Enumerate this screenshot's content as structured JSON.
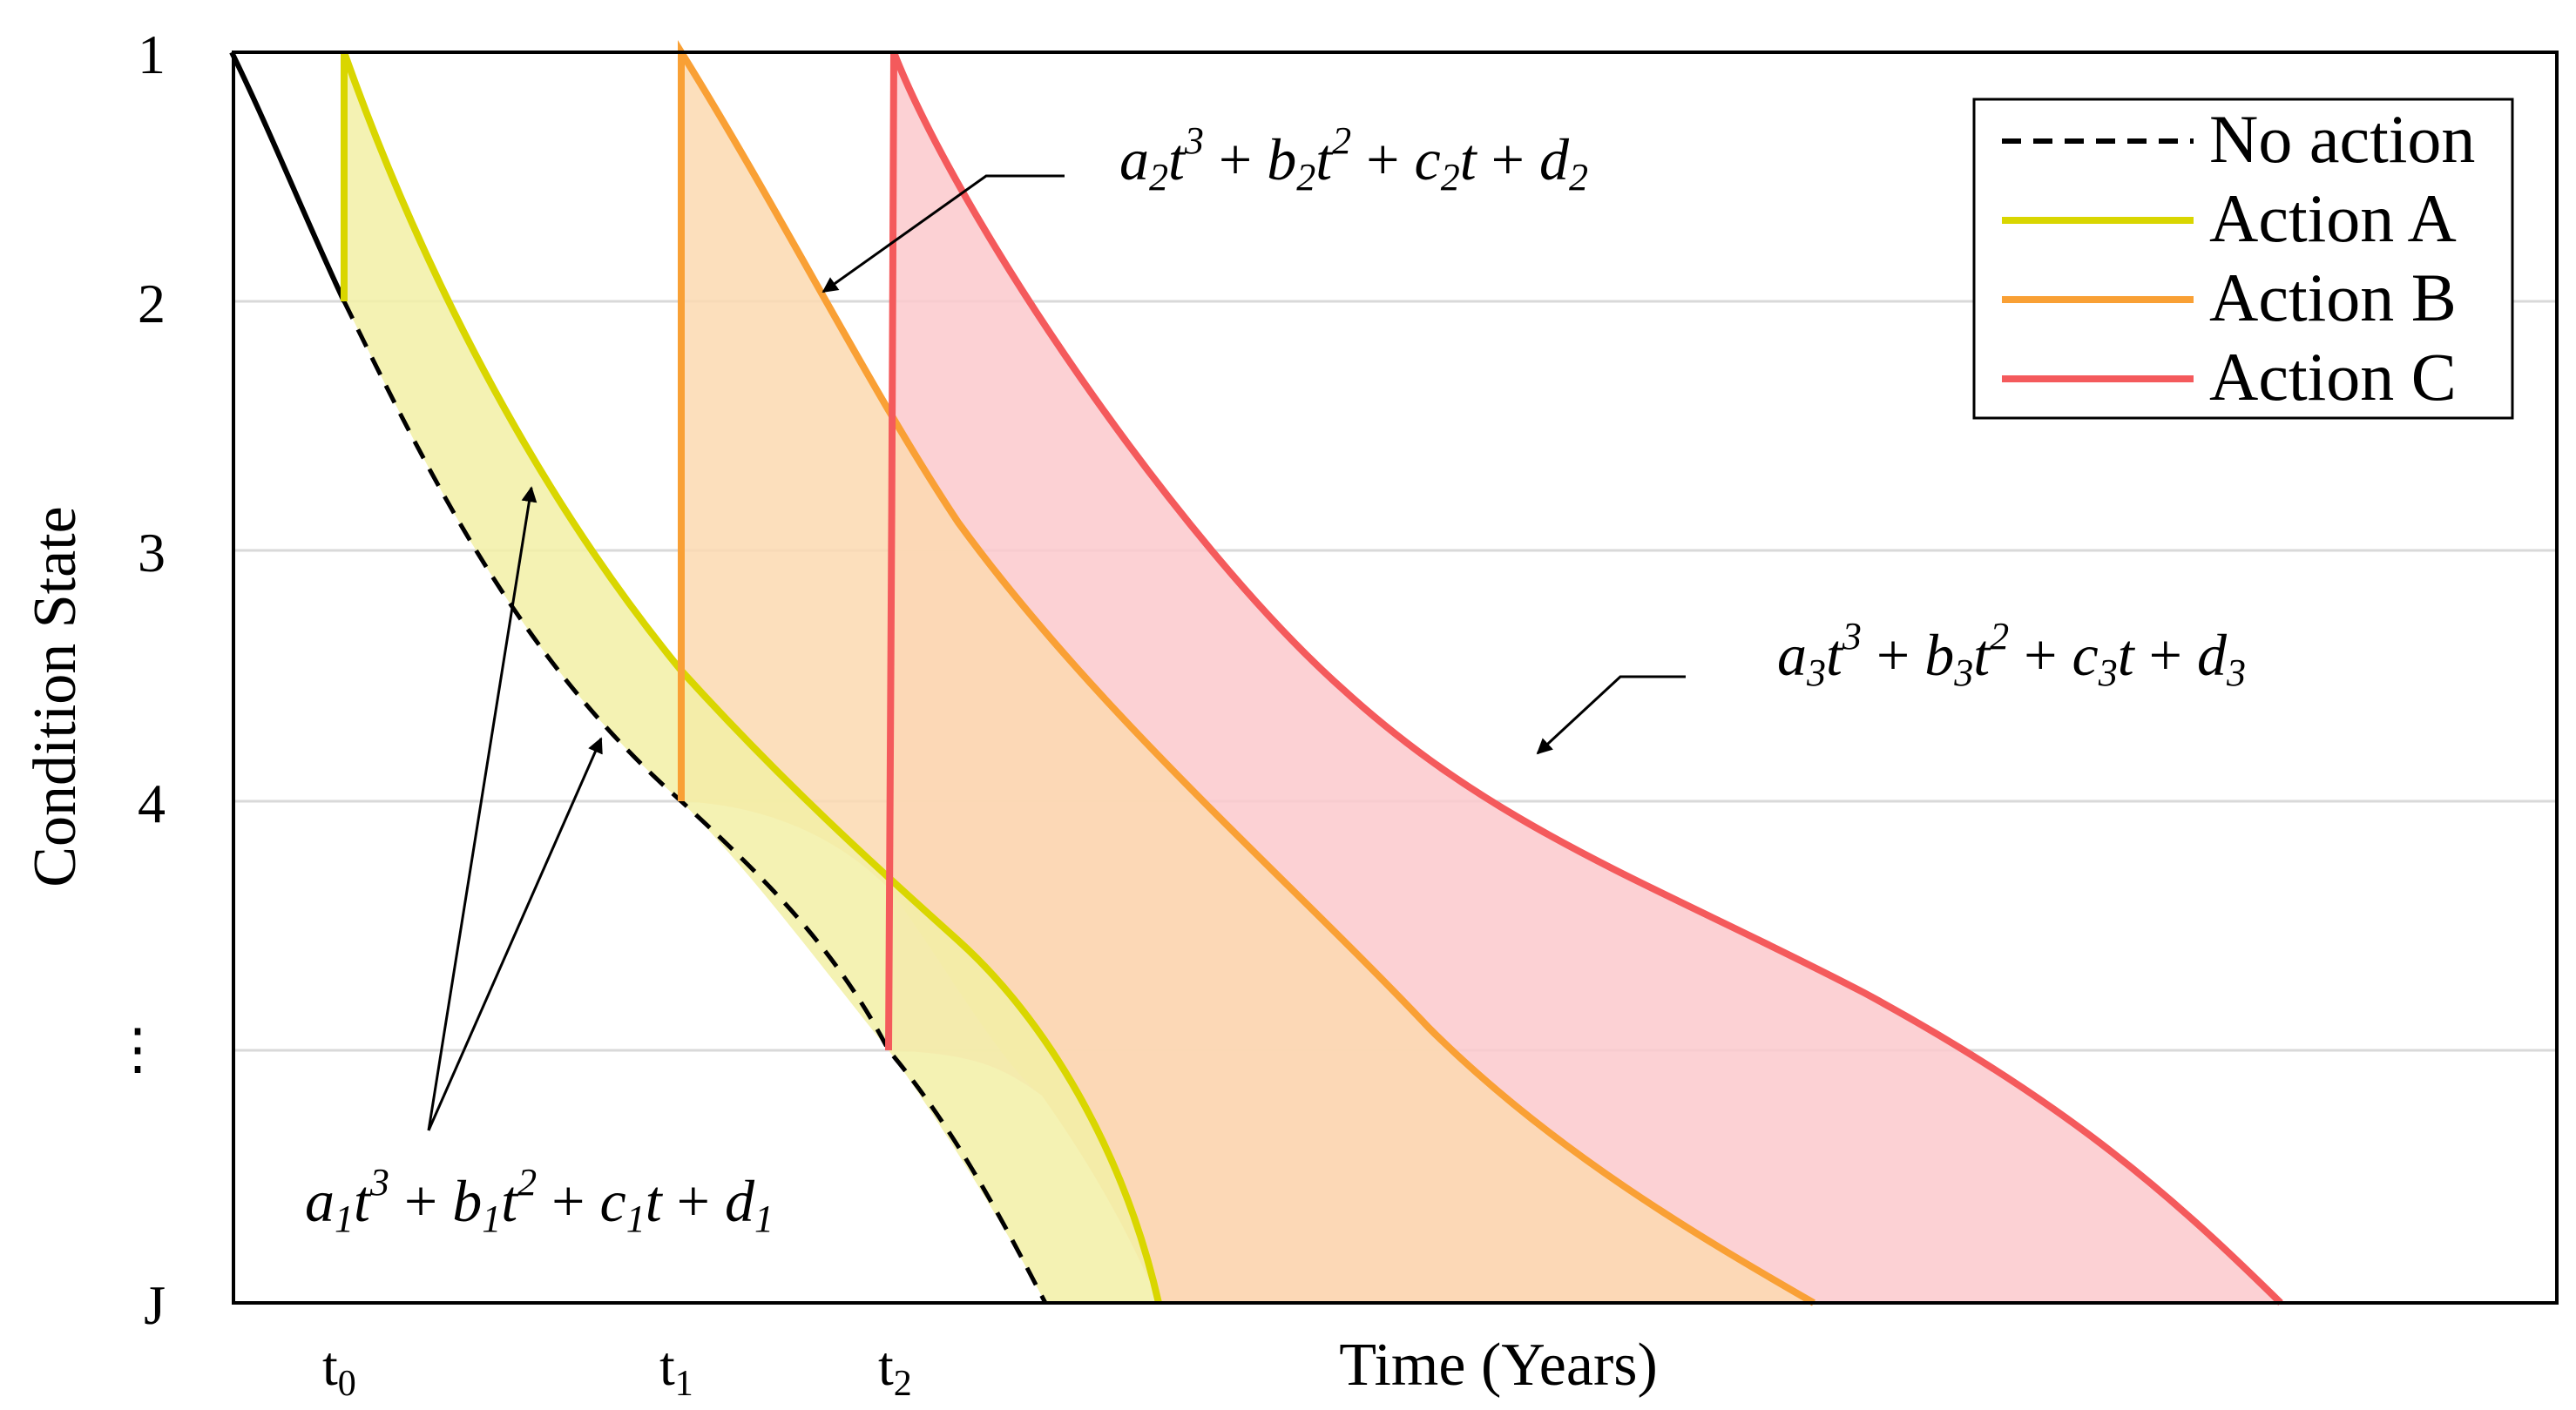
{
  "chart_data": {
    "type": "area",
    "title": "",
    "xlabel": "Time (Years)",
    "ylabel": "Condition State",
    "y_ticks": [
      "1",
      "2",
      "3",
      "4",
      "⋮",
      "J"
    ],
    "x_ticks": [
      {
        "label": "t",
        "sub": "0"
      },
      {
        "label": "t",
        "sub": "1"
      },
      {
        "label": "t",
        "sub": "2"
      }
    ],
    "ylim": [
      1,
      6
    ],
    "grid": "horizontal",
    "legend_position": "top-right",
    "colors": {
      "no_action": "#000000",
      "action_a": "#d9d600",
      "action_b": "#f9a035",
      "action_c": "#f45a5c",
      "fill_a": "#f2f0a6",
      "fill_b": "#fbd9b0",
      "fill_c": "#fcc9cc"
    },
    "legend": [
      "No action",
      "Action A",
      "Action B",
      "Action C"
    ],
    "series": [
      {
        "name": "No action",
        "line": "dashed",
        "x": [
          0,
          0.5,
          1.35,
          2.3,
          3.4,
          4.25,
          4.7
        ],
        "y": [
          1.0,
          1.52,
          2.0,
          3.0,
          4.0,
          5.0,
          6.0
        ]
      },
      {
        "name": "Action A",
        "start": "t0",
        "x": [
          1.35,
          2.3,
          3.4,
          4.25,
          4.75,
          5.2
        ],
        "y": [
          1.0,
          2.0,
          3.0,
          4.0,
          5.0,
          6.0
        ]
      },
      {
        "name": "Action B",
        "start": "t1",
        "x": [
          3.4,
          4.25,
          5.4,
          6.9,
          8.1
        ],
        "y": [
          1.0,
          2.0,
          3.0,
          4.0,
          6.0
        ]
      },
      {
        "name": "Action C",
        "start": "t2",
        "x": [
          4.25,
          5.4,
          7.0,
          8.8,
          10.3
        ],
        "y": [
          1.0,
          2.0,
          3.0,
          4.0,
          6.0
        ]
      }
    ],
    "annotations": [
      {
        "id": "eq1",
        "a": "a",
        "b": "b",
        "c": "c",
        "d": "d",
        "i": "1",
        "t": "t",
        "p3": "3",
        "p2": "2",
        "plus": "+"
      },
      {
        "id": "eq2",
        "a": "a",
        "b": "b",
        "c": "c",
        "d": "d",
        "i": "2",
        "t": "t",
        "p3": "3",
        "p2": "2",
        "plus": "+"
      },
      {
        "id": "eq3",
        "a": "a",
        "b": "b",
        "c": "c",
        "d": "d",
        "i": "3",
        "t": "t",
        "p3": "3",
        "p2": "2",
        "plus": "+"
      }
    ]
  }
}
